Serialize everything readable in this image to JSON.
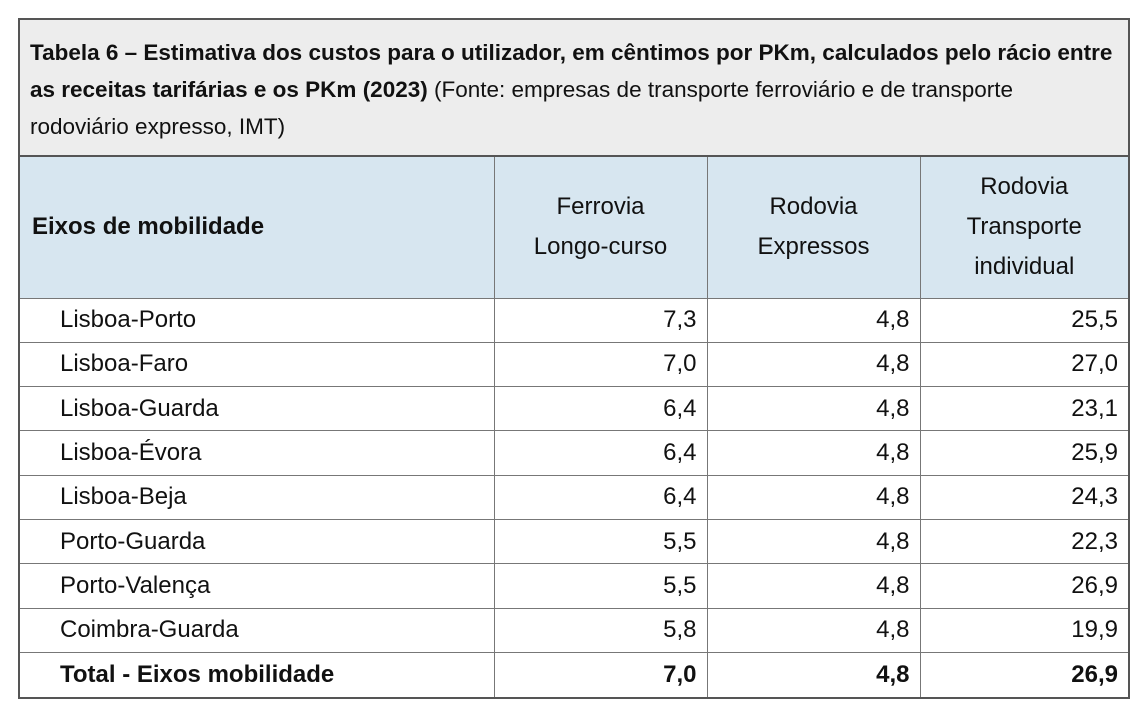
{
  "caption": {
    "bold": "Tabela 6 – Estimativa dos custos para o utilizador, em cêntimos por PKm, calculados pelo rácio entre as receitas tarifárias e os PKm (2023)",
    "normal": " (Fonte: empresas de transporte ferroviário e de transporte rodoviário expresso, IMT)"
  },
  "table": {
    "headers": [
      "Eixos de mobilidade",
      "Ferrovia Longo-curso",
      "Rodovia Expressos",
      "Rodovia Transporte individual"
    ],
    "rows": [
      [
        "Lisboa-Porto",
        "7,3",
        "4,8",
        "25,5"
      ],
      [
        "Lisboa-Faro",
        "7,0",
        "4,8",
        "27,0"
      ],
      [
        "Lisboa-Guarda",
        "6,4",
        "4,8",
        "23,1"
      ],
      [
        "Lisboa-Évora",
        "6,4",
        "4,8",
        "25,9"
      ],
      [
        "Lisboa-Beja",
        "6,4",
        "4,8",
        "24,3"
      ],
      [
        "Porto-Guarda",
        "5,5",
        "4,8",
        "22,3"
      ],
      [
        "Porto-Valença",
        "5,5",
        "4,8",
        "26,9"
      ],
      [
        "Coimbra-Guarda",
        "5,8",
        "4,8",
        "19,9"
      ]
    ],
    "total": [
      "Total - Eixos mobilidade",
      "7,0",
      "4,8",
      "26,9"
    ]
  }
}
